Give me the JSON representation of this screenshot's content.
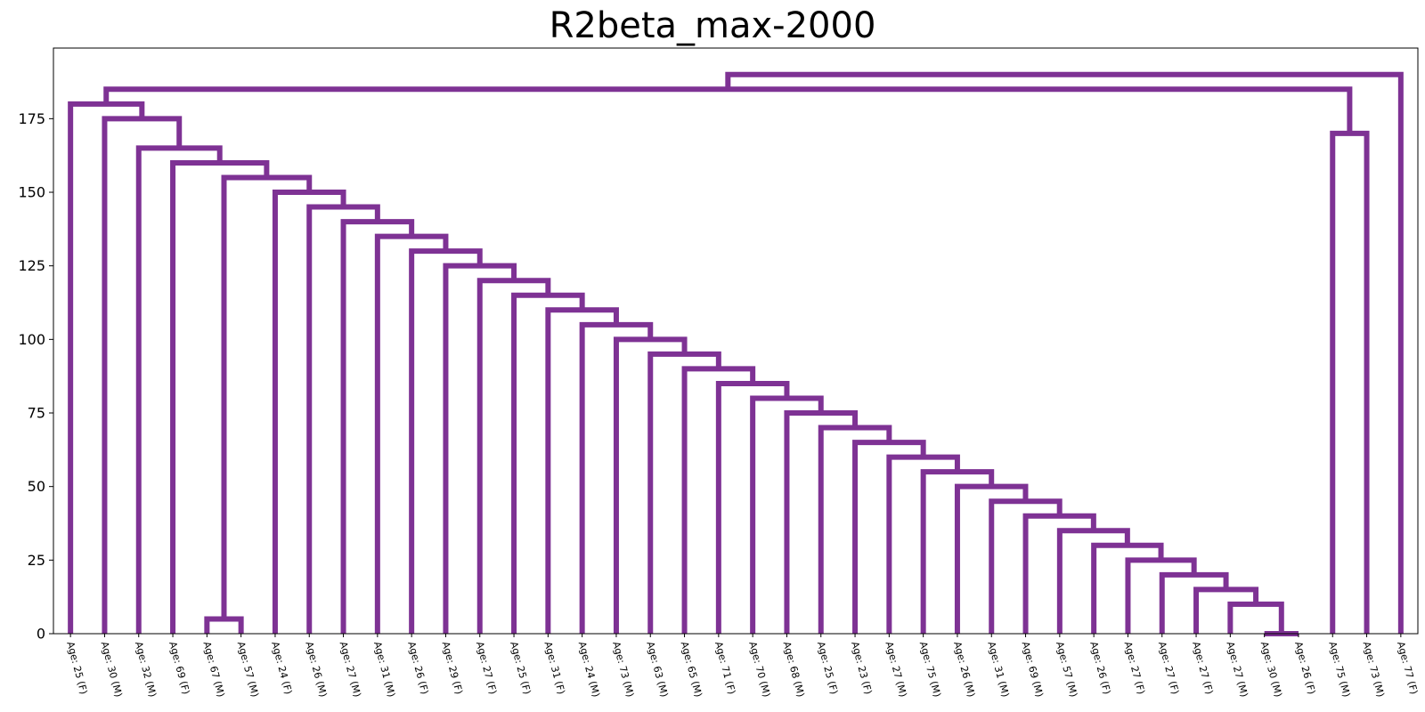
{
  "chart_data": {
    "type": "dendrogram",
    "title": "R2beta_max-2000",
    "xlabel": "",
    "ylabel": "",
    "ylim": [
      0,
      199
    ],
    "yticks": [
      0,
      25,
      50,
      75,
      100,
      125,
      150,
      175
    ],
    "grid": false,
    "link_color": "#7e3294",
    "leaves": [
      "Age: 25 (F)",
      "Age: 30 (M)",
      "Age: 32 (M)",
      "Age: 69 (F)",
      "Age: 67 (M)",
      "Age: 57 (M)",
      "Age: 24 (F)",
      "Age: 26 (M)",
      "Age: 27 (M)",
      "Age: 31 (M)",
      "Age: 26 (F)",
      "Age: 29 (F)",
      "Age: 27 (F)",
      "Age: 25 (F)",
      "Age: 31 (F)",
      "Age: 24 (M)",
      "Age: 73 (M)",
      "Age: 63 (M)",
      "Age: 65 (M)",
      "Age: 71 (F)",
      "Age: 70 (M)",
      "Age: 68 (M)",
      "Age: 25 (F)",
      "Age: 23 (F)",
      "Age: 27 (M)",
      "Age: 75 (M)",
      "Age: 26 (M)",
      "Age: 31 (M)",
      "Age: 69 (M)",
      "Age: 57 (M)",
      "Age: 26 (F)",
      "Age: 27 (F)",
      "Age: 27 (F)",
      "Age: 27 (F)",
      "Age: 27 (M)",
      "Age: 30 (M)",
      "Age: 26 (F)",
      "Age: 75 (M)",
      "Age: 73 (M)",
      "Age: 77 (F)"
    ],
    "merges": [
      {
        "left": 35,
        "right": 36,
        "height": 0
      },
      {
        "left": 4,
        "right": 5,
        "height": 5
      },
      {
        "left": 34,
        "right": "m0",
        "height": 10
      },
      {
        "left": 33,
        "right": "m2",
        "height": 15
      },
      {
        "left": 32,
        "right": "m3",
        "height": 20
      },
      {
        "left": 31,
        "right": "m4",
        "height": 25
      },
      {
        "left": 30,
        "right": "m5",
        "height": 30
      },
      {
        "left": 29,
        "right": "m6",
        "height": 35
      },
      {
        "left": 28,
        "right": "m7",
        "height": 40
      },
      {
        "left": 27,
        "right": "m8",
        "height": 45
      },
      {
        "left": 26,
        "right": "m9",
        "height": 50
      },
      {
        "left": 25,
        "right": "m10",
        "height": 55
      },
      {
        "left": 24,
        "right": "m11",
        "height": 60
      },
      {
        "left": 23,
        "right": "m12",
        "height": 65
      },
      {
        "left": 22,
        "right": "m13",
        "height": 70
      },
      {
        "left": 21,
        "right": "m14",
        "height": 75
      },
      {
        "left": 20,
        "right": "m15",
        "height": 80
      },
      {
        "left": 19,
        "right": "m16",
        "height": 85
      },
      {
        "left": 18,
        "right": "m17",
        "height": 90
      },
      {
        "left": 17,
        "right": "m18",
        "height": 95
      },
      {
        "left": 16,
        "right": "m19",
        "height": 100
      },
      {
        "left": 15,
        "right": "m20",
        "height": 105
      },
      {
        "left": 14,
        "right": "m21",
        "height": 110
      },
      {
        "left": 13,
        "right": "m22",
        "height": 115
      },
      {
        "left": 12,
        "right": "m23",
        "height": 120
      },
      {
        "left": 11,
        "right": "m24",
        "height": 125
      },
      {
        "left": 10,
        "right": "m25",
        "height": 130
      },
      {
        "left": 9,
        "right": "m26",
        "height": 135
      },
      {
        "left": 8,
        "right": "m27",
        "height": 140
      },
      {
        "left": 7,
        "right": "m28",
        "height": 145
      },
      {
        "left": 6,
        "right": "m29",
        "height": 150
      },
      {
        "left": "m1",
        "right": "m30",
        "height": 155
      },
      {
        "left": 3,
        "right": "m31",
        "height": 160
      },
      {
        "left": 2,
        "right": "m32",
        "height": 165
      },
      {
        "left": 37,
        "right": 38,
        "height": 170
      },
      {
        "left": 1,
        "right": "m33",
        "height": 175
      },
      {
        "left": 0,
        "right": "m35",
        "height": 180
      },
      {
        "left": "m36",
        "right": "m34",
        "height": 185
      },
      {
        "left": "m37",
        "right": 39,
        "height": 190
      }
    ]
  }
}
